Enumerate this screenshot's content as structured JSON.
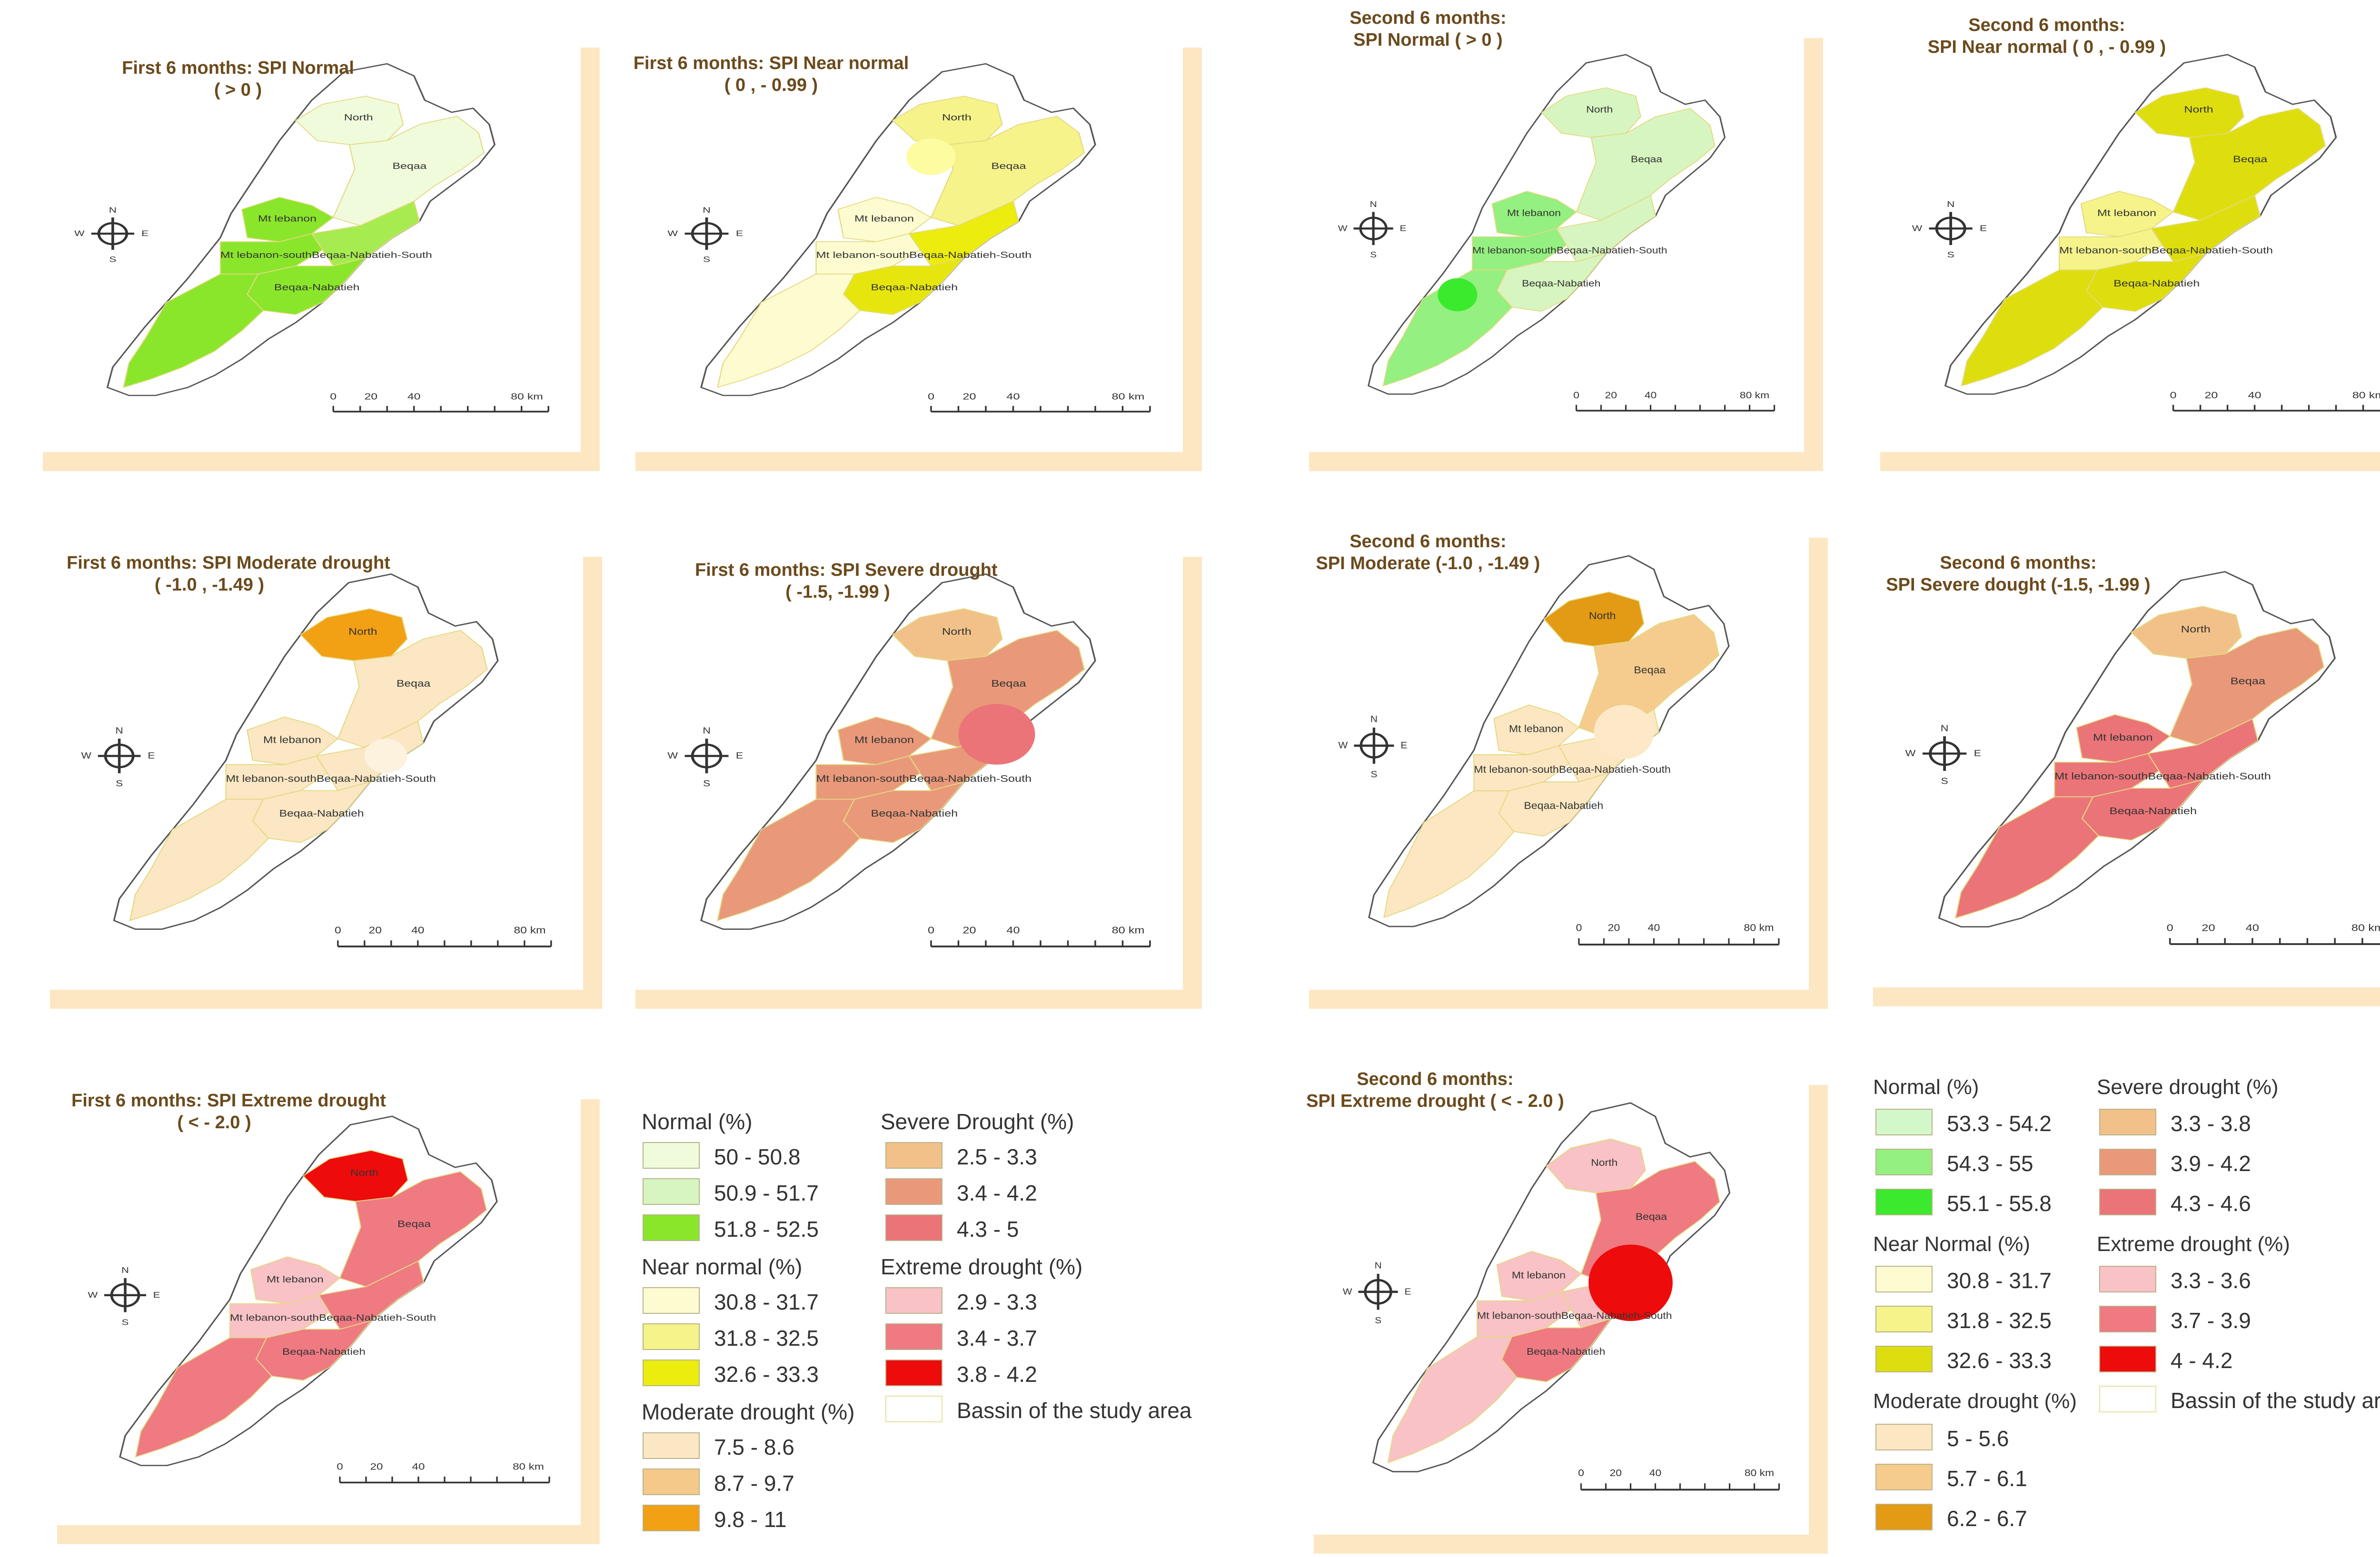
{
  "panels": [
    {
      "id": "p1",
      "title1": "First 6 months: SPI Normal",
      "title2": "( > 0 )",
      "scheme": "normal1"
    },
    {
      "id": "p2",
      "title1": "First 6 months: SPI Near normal",
      "title2": "( 0 , - 0.99 )",
      "scheme": "near1"
    },
    {
      "id": "p3",
      "title1": "Second 6 months:",
      "title2": "SPI Normal ( > 0 )",
      "scheme": "normal2"
    },
    {
      "id": "p4",
      "title1": "Second 6 months:",
      "title2": "SPI Near normal ( 0 , - 0.99 )",
      "scheme": "near2"
    },
    {
      "id": "p5",
      "title1": "First 6 months: SPI Moderate drought",
      "title2": "( -1.0 , -1.49 )",
      "scheme": "mod1"
    },
    {
      "id": "p6",
      "title1": "First 6 months: SPI Severe drought",
      "title2": "( -1.5, -1.99 )",
      "scheme": "sev1"
    },
    {
      "id": "p7",
      "title1": "Second 6 months:",
      "title2": "SPI Moderate (-1.0 , -1.49 )",
      "scheme": "mod2"
    },
    {
      "id": "p8",
      "title1": "Second 6 months:",
      "title2": "SPI Severe dought (-1.5, -1.99 )",
      "scheme": "sev2"
    },
    {
      "id": "p9",
      "title1": "First 6 months: SPI Extreme drought",
      "title2": "( < - 2.0 )",
      "scheme": "ext1"
    },
    {
      "id": "p10",
      "title1": "Second 6 months:",
      "title2": "SPI Extreme drought ( < - 2.0 )",
      "scheme": "ext2"
    }
  ],
  "map_labels": {
    "north": "North",
    "beqaa": "Beqaa",
    "mt_lebanon": "Mt lebanon",
    "mt_lebanon_south": "Mt lebanon-south",
    "beqaa_nabatieh_south": "Beqaa-Nabatieh-South",
    "beqaa_nabatieh": "Beqaa-Nabatieh"
  },
  "compass": {
    "n": "N",
    "s": "S",
    "e": "E",
    "w": "W"
  },
  "scale_bar": {
    "t0": "0",
    "t1": "20",
    "t2": "40",
    "t3": "80 km"
  },
  "legend_first": {
    "normal_head": "Normal (%)",
    "normal": [
      {
        "label": "50 - 50.8",
        "color": "#f0fbdc"
      },
      {
        "label": "50.9 - 51.7",
        "color": "#d7f5c0"
      },
      {
        "label": "51.8 - 52.5",
        "color": "#8ae62a"
      }
    ],
    "near_head": "Near normal (%)",
    "near": [
      {
        "label": "30.8 - 31.7",
        "color": "#fdfcd0"
      },
      {
        "label": "31.8 - 32.5",
        "color": "#f5f38a"
      },
      {
        "label": "32.6 - 33.3",
        "color": "#ecec0e"
      }
    ],
    "moderate_head": "Moderate drought (%)",
    "moderate": [
      {
        "label": "7.5 - 8.6",
        "color": "#fbe7c3"
      },
      {
        "label": "8.7 - 9.7",
        "color": "#f5c98a"
      },
      {
        "label": "9.8 - 11",
        "color": "#f2a014"
      }
    ],
    "severe_head": "Severe Drought (%)",
    "severe": [
      {
        "label": "2.5 - 3.3",
        "color": "#f2c189"
      },
      {
        "label": "3.4 - 4.2",
        "color": "#e9997a"
      },
      {
        "label": "4.3 - 5",
        "color": "#eb7478"
      }
    ],
    "extreme_head": "Extreme drought (%)",
    "extreme": [
      {
        "label": "2.9 - 3.3",
        "color": "#f8c2c6"
      },
      {
        "label": "3.4 - 3.7",
        "color": "#ef7a82"
      },
      {
        "label": "3.8 - 4.2",
        "color": "#ee0b0b"
      }
    ],
    "bassin_label": "Bassin of the study area"
  },
  "legend_second": {
    "normal_head": "Normal (%)",
    "normal": [
      {
        "label": "53.3 - 54.2",
        "color": "#d2f7c8"
      },
      {
        "label": "54.3 - 55",
        "color": "#94f080"
      },
      {
        "label": "55.1 - 55.8",
        "color": "#3bea2c"
      }
    ],
    "near_head": "Near Normal (%)",
    "near": [
      {
        "label": "30.8 - 31.7",
        "color": "#fdfcd0"
      },
      {
        "label": "31.8 - 32.5",
        "color": "#f5f38a"
      },
      {
        "label": "32.6 - 33.3",
        "color": "#dede0e"
      }
    ],
    "moderate_head": "Moderate drought (%)",
    "moderate": [
      {
        "label": "5 - 5.6",
        "color": "#fce7c2"
      },
      {
        "label": "5.7 - 6.1",
        "color": "#f5cc8d"
      },
      {
        "label": "6.2 - 6.7",
        "color": "#e39a15"
      }
    ],
    "severe_head": "Severe drought (%)",
    "severe": [
      {
        "label": "3.3 - 3.8",
        "color": "#f2c189"
      },
      {
        "label": "3.9 - 4.2",
        "color": "#e9997a"
      },
      {
        "label": "4.3 - 4.6",
        "color": "#eb7478"
      }
    ],
    "extreme_head": "Extreme drought (%)",
    "extreme": [
      {
        "label": "3.3 - 3.6",
        "color": "#f8c2c6"
      },
      {
        "label": "3.7 - 3.9",
        "color": "#ef7a82"
      },
      {
        "label": "4 - 4.2",
        "color": "#ee0b0b"
      }
    ],
    "bassin_label": "Bassin of the study area"
  }
}
